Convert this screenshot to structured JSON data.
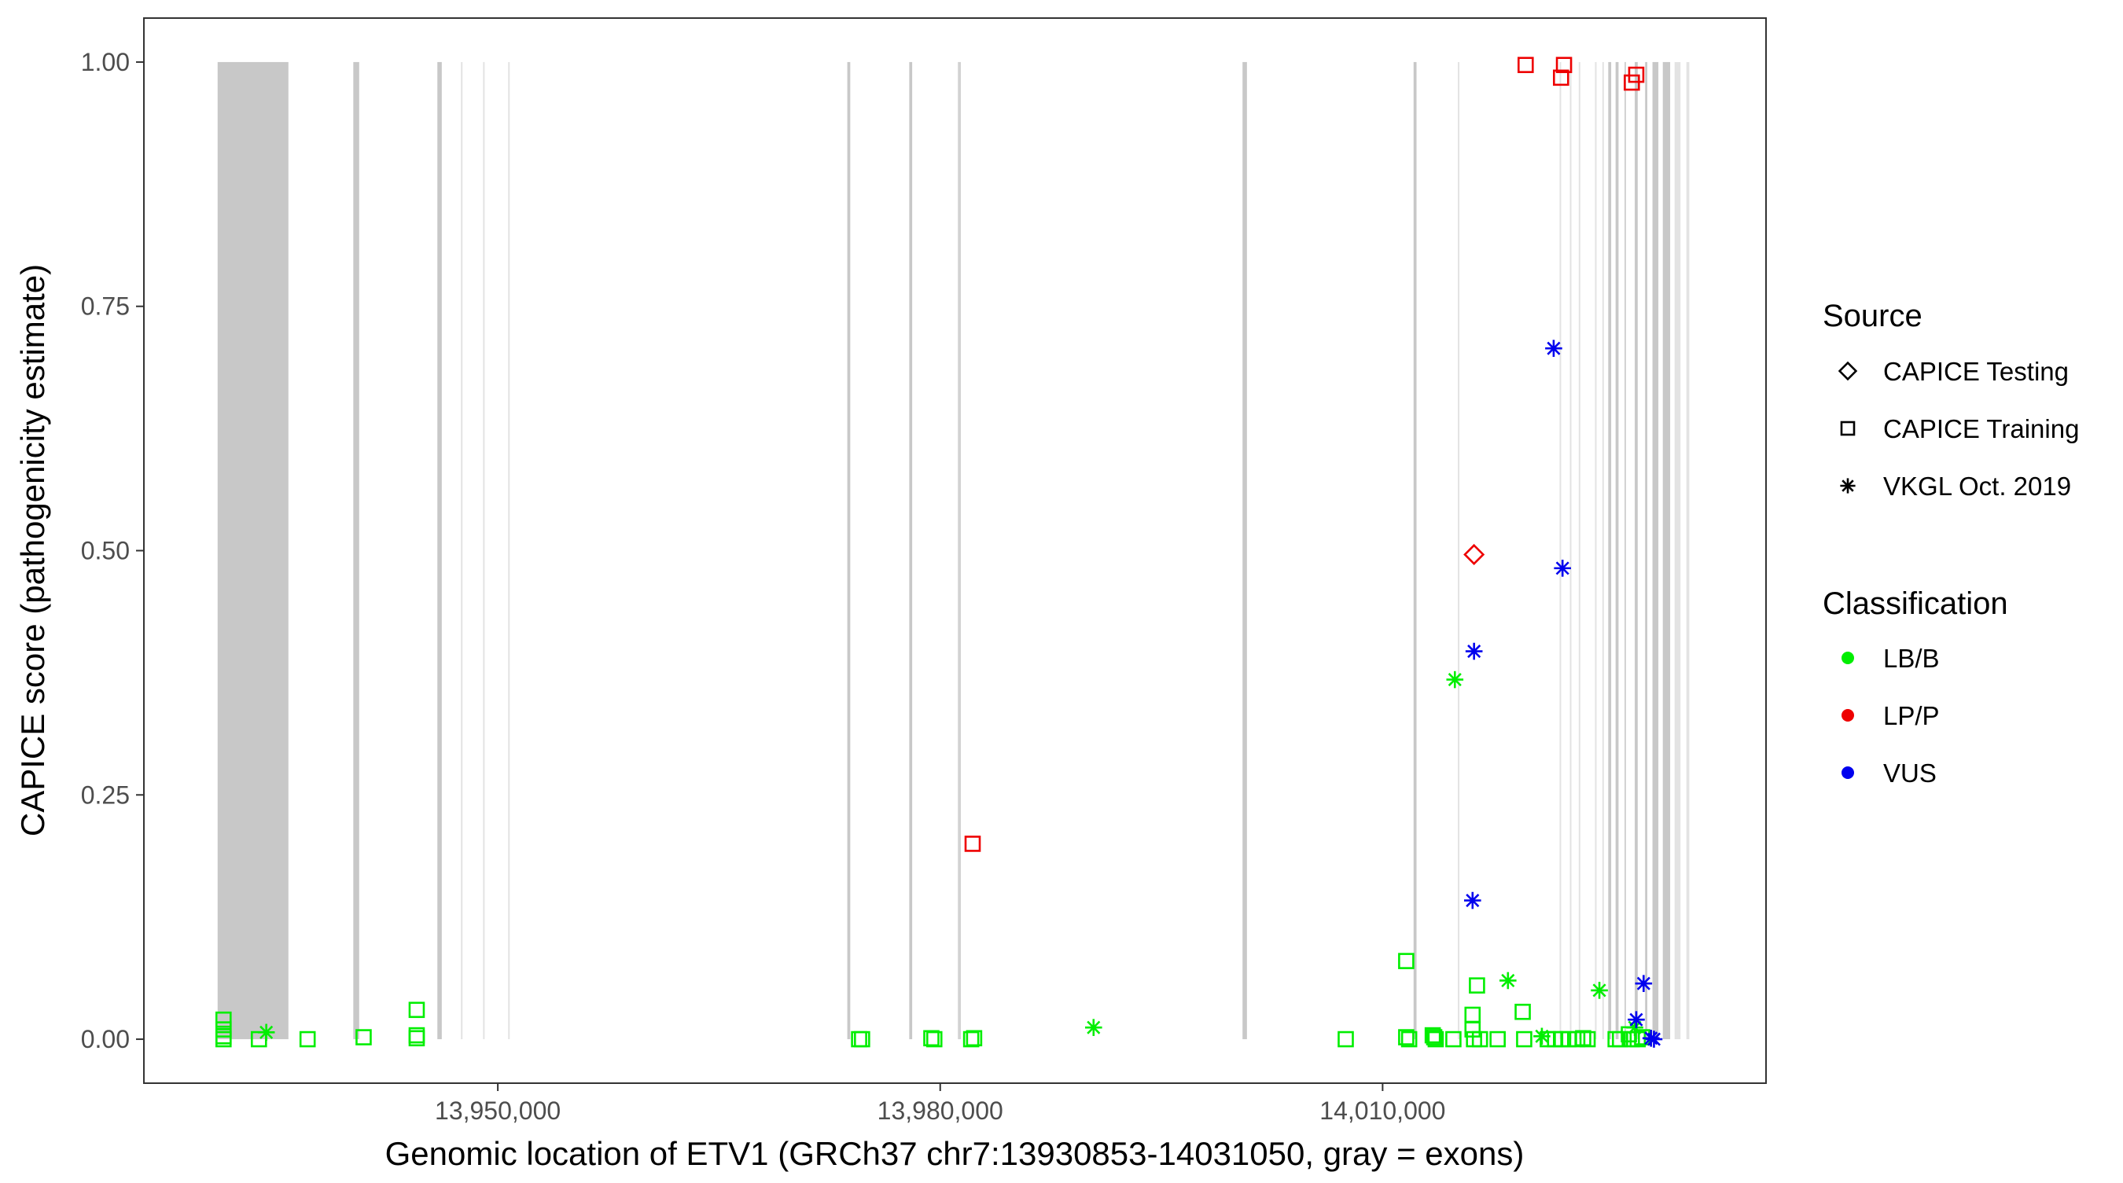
{
  "chart_data": {
    "type": "scatter",
    "title": "",
    "xlabel": "Genomic location of ETV1 (GRCh37 chr7:13930853-14031050, gray = exons)",
    "ylabel": "CAPICE score (pathogenicity estimate)",
    "xlim": [
      13926000,
      14036000
    ],
    "ylim": [
      -0.045,
      1.045
    ],
    "grid": false,
    "legend_position": "right",
    "x_ticks": [
      13950000,
      13980000,
      14010000
    ],
    "x_tick_labels": [
      "13,950,000",
      "13,980,000",
      "14,010,000"
    ],
    "y_ticks": [
      0,
      0.25,
      0.5,
      0.75,
      1.0
    ],
    "y_tick_labels": [
      "0.00",
      "0.25",
      "0.50",
      "0.75",
      "1.00"
    ],
    "exons": [
      [
        13931000,
        13935800
      ],
      [
        13935950,
        13936050
      ],
      [
        13935400,
        13935480
      ],
      [
        13935600,
        13935700
      ],
      [
        13935200,
        13935280
      ],
      [
        13935350,
        13935450
      ],
      [
        13938000,
        13938000
      ],
      [
        13935000,
        13935080
      ],
      [
        13935350,
        13935420
      ],
      [
        13935900,
        13935950
      ]
    ],
    "exon_regions": [
      {
        "start": 13931000,
        "end": 13935800,
        "tone": "dark"
      },
      {
        "start": 13940200,
        "end": 13940600,
        "tone": "dark"
      },
      {
        "start": 13945900,
        "end": 13946200,
        "tone": "dark"
      },
      {
        "start": 13947500,
        "end": 13947600,
        "tone": "light"
      },
      {
        "start": 13949000,
        "end": 13949100,
        "tone": "light"
      },
      {
        "start": 13950700,
        "end": 13950800,
        "tone": "light"
      },
      {
        "start": 13973700,
        "end": 13973900,
        "tone": "dark"
      },
      {
        "start": 13977900,
        "end": 13978100,
        "tone": "dark"
      },
      {
        "start": 13981200,
        "end": 13981400,
        "tone": "mid"
      },
      {
        "start": 14000500,
        "end": 14000800,
        "tone": "dark"
      },
      {
        "start": 14012100,
        "end": 14012300,
        "tone": "dark"
      },
      {
        "start": 14015100,
        "end": 14015200,
        "tone": "light"
      },
      {
        "start": 14022000,
        "end": 14022100,
        "tone": "light"
      },
      {
        "start": 14022700,
        "end": 14022800,
        "tone": "light"
      },
      {
        "start": 14023300,
        "end": 14023400,
        "tone": "light"
      },
      {
        "start": 14024400,
        "end": 14024500,
        "tone": "light"
      },
      {
        "start": 14024900,
        "end": 14025000,
        "tone": "light"
      },
      {
        "start": 14025300,
        "end": 14025500,
        "tone": "dark"
      },
      {
        "start": 14025800,
        "end": 14026000,
        "tone": "dark"
      },
      {
        "start": 14026400,
        "end": 14026500,
        "tone": "mid"
      },
      {
        "start": 14027100,
        "end": 14027300,
        "tone": "dark"
      },
      {
        "start": 14027800,
        "end": 14027950,
        "tone": "dark"
      },
      {
        "start": 14028300,
        "end": 14028700,
        "tone": "dark"
      },
      {
        "start": 14029000,
        "end": 14029500,
        "tone": "dark"
      },
      {
        "start": 14029800,
        "end": 14030200,
        "tone": "light"
      },
      {
        "start": 14030600,
        "end": 14030800,
        "tone": "light"
      }
    ],
    "series": [
      {
        "name": "LB/B",
        "color": "#00ee00",
        "points": [
          {
            "x": 13931400,
            "y": 0.02,
            "source": "CAPICE Training"
          },
          {
            "x": 13931400,
            "y": 0.01,
            "source": "CAPICE Training"
          },
          {
            "x": 13931400,
            "y": 0.003,
            "source": "CAPICE Training"
          },
          {
            "x": 13931400,
            "y": 0.0,
            "source": "CAPICE Training"
          },
          {
            "x": 13933800,
            "y": 0.0,
            "source": "CAPICE Training"
          },
          {
            "x": 13934300,
            "y": 0.007,
            "source": "VKGL Oct. 2019"
          },
          {
            "x": 13937100,
            "y": 0.0,
            "source": "CAPICE Training"
          },
          {
            "x": 13940900,
            "y": 0.002,
            "source": "CAPICE Training"
          },
          {
            "x": 13944500,
            "y": 0.03,
            "source": "CAPICE Training"
          },
          {
            "x": 13944500,
            "y": 0.004,
            "source": "CAPICE Training"
          },
          {
            "x": 13944500,
            "y": 0.001,
            "source": "CAPICE Training"
          },
          {
            "x": 13974500,
            "y": 0.0,
            "source": "CAPICE Training"
          },
          {
            "x": 13974700,
            "y": 0.0,
            "source": "CAPICE Training"
          },
          {
            "x": 13979400,
            "y": 0.001,
            "source": "CAPICE Training"
          },
          {
            "x": 13979600,
            "y": 0.0,
            "source": "CAPICE Training"
          },
          {
            "x": 13982100,
            "y": 0.0,
            "source": "CAPICE Training"
          },
          {
            "x": 13982300,
            "y": 0.001,
            "source": "CAPICE Training"
          },
          {
            "x": 13990400,
            "y": 0.012,
            "source": "VKGL Oct. 2019"
          },
          {
            "x": 14007500,
            "y": 0.0,
            "source": "CAPICE Training"
          },
          {
            "x": 14011600,
            "y": 0.08,
            "source": "CAPICE Training"
          },
          {
            "x": 14011600,
            "y": 0.002,
            "source": "CAPICE Training"
          },
          {
            "x": 14011800,
            "y": 0.0,
            "source": "CAPICE Training"
          },
          {
            "x": 14013400,
            "y": 0.004,
            "source": "CAPICE Training"
          },
          {
            "x": 14013600,
            "y": 0.0,
            "source": "CAPICE Training"
          },
          {
            "x": 14013500,
            "y": 0.002,
            "source": "CAPICE Training"
          },
          {
            "x": 14014800,
            "y": 0.0,
            "source": "CAPICE Training"
          },
          {
            "x": 14014900,
            "y": 0.368,
            "source": "VKGL Oct. 2019"
          },
          {
            "x": 14016100,
            "y": 0.025,
            "source": "CAPICE Training"
          },
          {
            "x": 14016100,
            "y": 0.01,
            "source": "CAPICE Training"
          },
          {
            "x": 14016200,
            "y": 0.0,
            "source": "CAPICE Training"
          },
          {
            "x": 14016400,
            "y": 0.055,
            "source": "CAPICE Training"
          },
          {
            "x": 14016600,
            "y": 0.0,
            "source": "CAPICE Training"
          },
          {
            "x": 14017800,
            "y": 0.0,
            "source": "CAPICE Training"
          },
          {
            "x": 14018500,
            "y": 0.06,
            "source": "VKGL Oct. 2019"
          },
          {
            "x": 14019500,
            "y": 0.028,
            "source": "CAPICE Training"
          },
          {
            "x": 14019600,
            "y": 0.0,
            "source": "CAPICE Training"
          },
          {
            "x": 14020800,
            "y": 0.003,
            "source": "VKGL Oct. 2019"
          },
          {
            "x": 14021200,
            "y": 0.0,
            "source": "CAPICE Training"
          },
          {
            "x": 14021700,
            "y": 0.0,
            "source": "CAPICE Training"
          },
          {
            "x": 14022100,
            "y": 0.0,
            "source": "CAPICE Training"
          },
          {
            "x": 14022600,
            "y": 0.0,
            "source": "CAPICE Training"
          },
          {
            "x": 14023200,
            "y": 0.0,
            "source": "CAPICE Training"
          },
          {
            "x": 14023600,
            "y": 0.001,
            "source": "CAPICE Training"
          },
          {
            "x": 14023900,
            "y": 0.0,
            "source": "CAPICE Training"
          },
          {
            "x": 14024700,
            "y": 0.05,
            "source": "VKGL Oct. 2019"
          },
          {
            "x": 14025800,
            "y": 0.0,
            "source": "CAPICE Training"
          },
          {
            "x": 14026100,
            "y": 0.0,
            "source": "CAPICE Training"
          },
          {
            "x": 14026700,
            "y": 0.005,
            "source": "CAPICE Training"
          },
          {
            "x": 14026900,
            "y": 0.0,
            "source": "CAPICE Training"
          },
          {
            "x": 14027100,
            "y": 0.012,
            "source": "VKGL Oct. 2019"
          },
          {
            "x": 14027300,
            "y": 0.0,
            "source": "CAPICE Training"
          },
          {
            "x": 14027600,
            "y": 0.002,
            "source": "CAPICE Training"
          }
        ]
      },
      {
        "name": "LP/P",
        "color": "#ee0000",
        "points": [
          {
            "x": 13982200,
            "y": 0.2,
            "source": "CAPICE Training"
          },
          {
            "x": 14016200,
            "y": 0.496,
            "source": "CAPICE Testing"
          },
          {
            "x": 14019700,
            "y": 0.997,
            "source": "CAPICE Training"
          },
          {
            "x": 14022100,
            "y": 0.984,
            "source": "CAPICE Training"
          },
          {
            "x": 14022300,
            "y": 0.997,
            "source": "CAPICE Training"
          },
          {
            "x": 14026900,
            "y": 0.979,
            "source": "CAPICE Training"
          },
          {
            "x": 14027200,
            "y": 0.987,
            "source": "CAPICE Training"
          }
        ]
      },
      {
        "name": "VUS",
        "color": "#0000ee",
        "points": [
          {
            "x": 14021600,
            "y": 0.707,
            "source": "VKGL Oct. 2019"
          },
          {
            "x": 14022200,
            "y": 0.482,
            "source": "VKGL Oct. 2019"
          },
          {
            "x": 14016200,
            "y": 0.397,
            "source": "VKGL Oct. 2019"
          },
          {
            "x": 14016100,
            "y": 0.142,
            "source": "VKGL Oct. 2019"
          },
          {
            "x": 14027700,
            "y": 0.057,
            "source": "VKGL Oct. 2019"
          },
          {
            "x": 14027200,
            "y": 0.02,
            "source": "VKGL Oct. 2019"
          },
          {
            "x": 14028200,
            "y": 0.001,
            "source": "VKGL Oct. 2019"
          },
          {
            "x": 14028400,
            "y": 0.0,
            "source": "VKGL Oct. 2019"
          }
        ]
      }
    ],
    "legend": {
      "source_title": "Source",
      "source_items": [
        {
          "label": "CAPICE Testing",
          "shape": "diamond"
        },
        {
          "label": "CAPICE Training",
          "shape": "square"
        },
        {
          "label": "VKGL Oct. 2019",
          "shape": "asterisk"
        }
      ],
      "class_title": "Classification",
      "class_items": [
        {
          "label": "LB/B",
          "color": "#00ee00"
        },
        {
          "label": "LP/P",
          "color": "#ee0000"
        },
        {
          "label": "VUS",
          "color": "#0000ee"
        }
      ]
    }
  }
}
